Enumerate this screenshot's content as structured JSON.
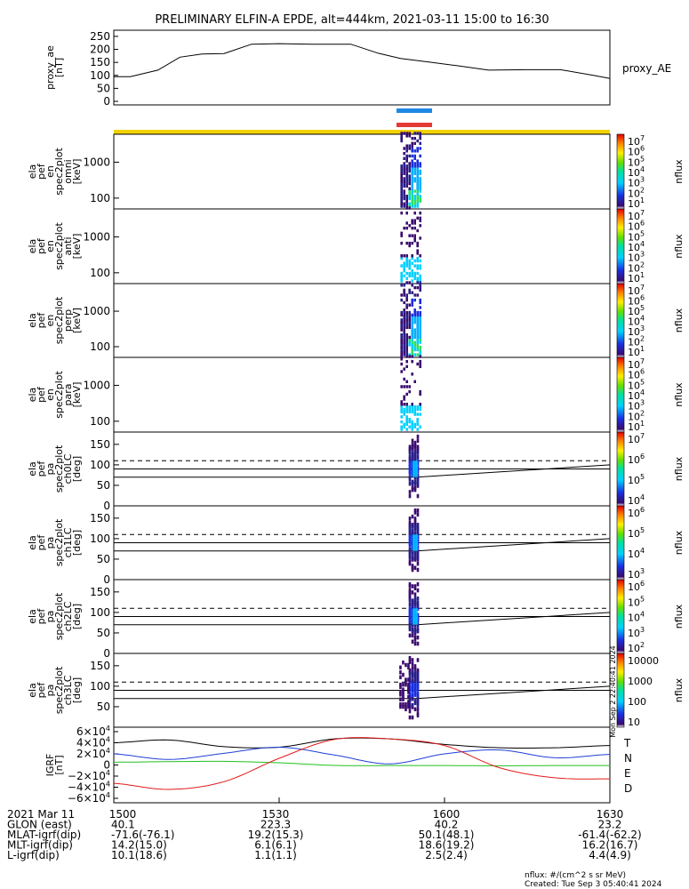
{
  "title": "PRELIMINARY ELFIN-A EPDE, alt=444km, 2021-03-11 15:00 to 16:30",
  "colors": {
    "axis": "#000000",
    "bar_blue": "#1e88e5",
    "bar_red": "#e53935",
    "bar_yellow": "#f2d200",
    "grf_T": "#000000",
    "grf_N": "#1f3fd6",
    "grf_E": "#22c01e",
    "grf_D": "#e01b1b"
  },
  "panels": [
    {
      "id": "proxy_ae",
      "label": [
        "proxy_ae",
        "[nT]"
      ],
      "ticks": [
        "250",
        "200",
        "150",
        "100",
        "50",
        "0"
      ],
      "right_label": "proxy_AE"
    },
    {
      "id": "omni",
      "label": [
        "ela",
        "pef",
        "en",
        "spec2plot",
        "omni",
        "[keV]"
      ],
      "ticks": [
        "1000",
        "100"
      ],
      "cbar": [
        "10^7",
        "10^6",
        "10^5",
        "10^4",
        "10^3",
        "10^2",
        "10^1"
      ],
      "cbar_title": "nflux"
    },
    {
      "id": "anti",
      "label": [
        "ela",
        "pef",
        "en",
        "spec2plot",
        "anti",
        "[keV]"
      ],
      "ticks": [
        "1000",
        "100"
      ],
      "cbar": [
        "10^7",
        "10^6",
        "10^5",
        "10^4",
        "10^3",
        "10^2",
        "10^1"
      ],
      "cbar_title": "nflux"
    },
    {
      "id": "perp",
      "label": [
        "ela",
        "pef",
        "en",
        "spec2plot",
        "perp",
        "[keV]"
      ],
      "ticks": [
        "1000",
        "100"
      ],
      "cbar": [
        "10^7",
        "10^6",
        "10^5",
        "10^4",
        "10^3",
        "10^2",
        "10^1"
      ],
      "cbar_title": "nflux"
    },
    {
      "id": "para",
      "label": [
        "ela",
        "pef",
        "en",
        "spec2plot",
        "para",
        "[keV]"
      ],
      "ticks": [
        "1000",
        "100"
      ],
      "cbar": [
        "10^7",
        "10^6",
        "10^5",
        "10^4",
        "10^3",
        "10^2",
        "10^1"
      ],
      "cbar_title": "nflux"
    },
    {
      "id": "ch0LC",
      "label": [
        "ela",
        "pef",
        "pa",
        "spec2plot",
        "ch0LC",
        "[deg]"
      ],
      "ticks": [
        "150",
        "100",
        "50",
        "0"
      ],
      "cbar": [
        "10^7",
        "10^6",
        "10^5",
        "10^4"
      ],
      "cbar_title": "nflux"
    },
    {
      "id": "ch1LC",
      "label": [
        "ela",
        "pef",
        "pa",
        "spec2plot",
        "ch1LC",
        "[deg]"
      ],
      "ticks": [
        "150",
        "100",
        "50",
        "0"
      ],
      "cbar": [
        "10^6",
        "10^5",
        "10^4",
        "10^3"
      ],
      "cbar_title": "nflux"
    },
    {
      "id": "ch2LC",
      "label": [
        "ela",
        "pef",
        "pa",
        "spec2plot",
        "ch2LC",
        "[deg]"
      ],
      "ticks": [
        "150",
        "100",
        "50",
        "0"
      ],
      "cbar": [
        "10^6",
        "10^5",
        "10^4",
        "10^3",
        "10^2"
      ],
      "cbar_title": "nflux"
    },
    {
      "id": "ch3LC",
      "label": [
        "ela",
        "pef",
        "pa",
        "spec2plot",
        "ch3LC",
        "[deg]"
      ],
      "ticks": [
        "150",
        "100",
        "50"
      ],
      "cbar": [
        "10000",
        "1000",
        "100",
        "10"
      ],
      "cbar_title": "nflux"
    },
    {
      "id": "grf",
      "label": [
        "IGRF",
        "[nT]"
      ],
      "ticks": [
        "6×10^4",
        "4×10^4",
        "2×10^4",
        "0",
        "−2×10^4",
        "−4×10^4",
        "−6×10^4"
      ],
      "legend": [
        "T",
        "N",
        "E",
        "D"
      ]
    }
  ],
  "side_stamp": "Mon Sep 2 22:40:41 2024",
  "footer": {
    "rows": [
      [
        "2021 Mar 11",
        "1500",
        "1530",
        "1600",
        "1630"
      ],
      [
        "GLON (east)",
        "40.1",
        "223.3",
        "40.2",
        "23.2"
      ],
      [
        "MLAT-igrf(dip)",
        "-71.6(-76.1)",
        "19.2(15.3)",
        "50.1(48.1)",
        "-61.4(-62.2)"
      ],
      [
        "MLT-igrf(dip)",
        "14.2(15.0)",
        "6.1(6.1)",
        "18.6(19.2)",
        "16.2(16.7)"
      ],
      [
        "L-igrf(dip)",
        "10.1(18.6)",
        "1.1(1.1)",
        "2.5(2.4)",
        "4.4(4.9)"
      ]
    ],
    "units": "nflux: #/(cm^2 s sr MeV)",
    "created": "Created: Tue Sep  3 05:40:41 2024"
  },
  "chart_data": {
    "type": "line",
    "x_range": [
      "15:00",
      "16:30"
    ],
    "x_ticks": [
      "1500",
      "1530",
      "1600",
      "1630"
    ],
    "proxy_ae": {
      "ylim": [
        0,
        260
      ],
      "x_min": [
        0,
        3,
        8,
        12,
        16,
        20,
        25,
        30,
        36,
        43,
        48,
        52,
        57,
        62,
        68,
        75,
        81,
        87,
        90
      ],
      "values": [
        95,
        95,
        120,
        170,
        182,
        184,
        220,
        222,
        220,
        220,
        185,
        165,
        152,
        138,
        120,
        122,
        122,
        100,
        88
      ]
    },
    "igrf": {
      "ylim": [
        -60000,
        60000
      ],
      "series": [
        {
          "name": "T",
          "x_min": [
            0,
            10,
            20,
            30,
            40,
            50,
            60,
            70,
            80,
            90
          ],
          "values": [
            40000,
            45000,
            33000,
            32000,
            47000,
            47000,
            37000,
            31000,
            31000,
            35000
          ]
        },
        {
          "name": "N",
          "x_min": [
            0,
            10,
            20,
            30,
            40,
            50,
            60,
            70,
            80,
            90
          ],
          "values": [
            20000,
            10000,
            21000,
            32000,
            18000,
            2000,
            20000,
            27000,
            13000,
            19000
          ]
        },
        {
          "name": "E",
          "x_min": [
            0,
            10,
            20,
            30,
            40,
            50,
            60,
            70,
            80,
            90
          ],
          "values": [
            5000,
            6000,
            6500,
            4000,
            -800,
            -1000,
            -1000,
            -1500,
            -1000,
            -1000
          ]
        },
        {
          "name": "D",
          "x_min": [
            0,
            10,
            20,
            30,
            40,
            50,
            60,
            70,
            80,
            90
          ],
          "values": [
            -33000,
            -44000,
            -30000,
            12000,
            46000,
            47000,
            35000,
            -5000,
            -23000,
            -25000
          ]
        }
      ]
    },
    "lc_lines": {
      "solid_upper": 90,
      "solid_lower": 70,
      "dashed": 110,
      "solid_upper_end": 100
    }
  }
}
